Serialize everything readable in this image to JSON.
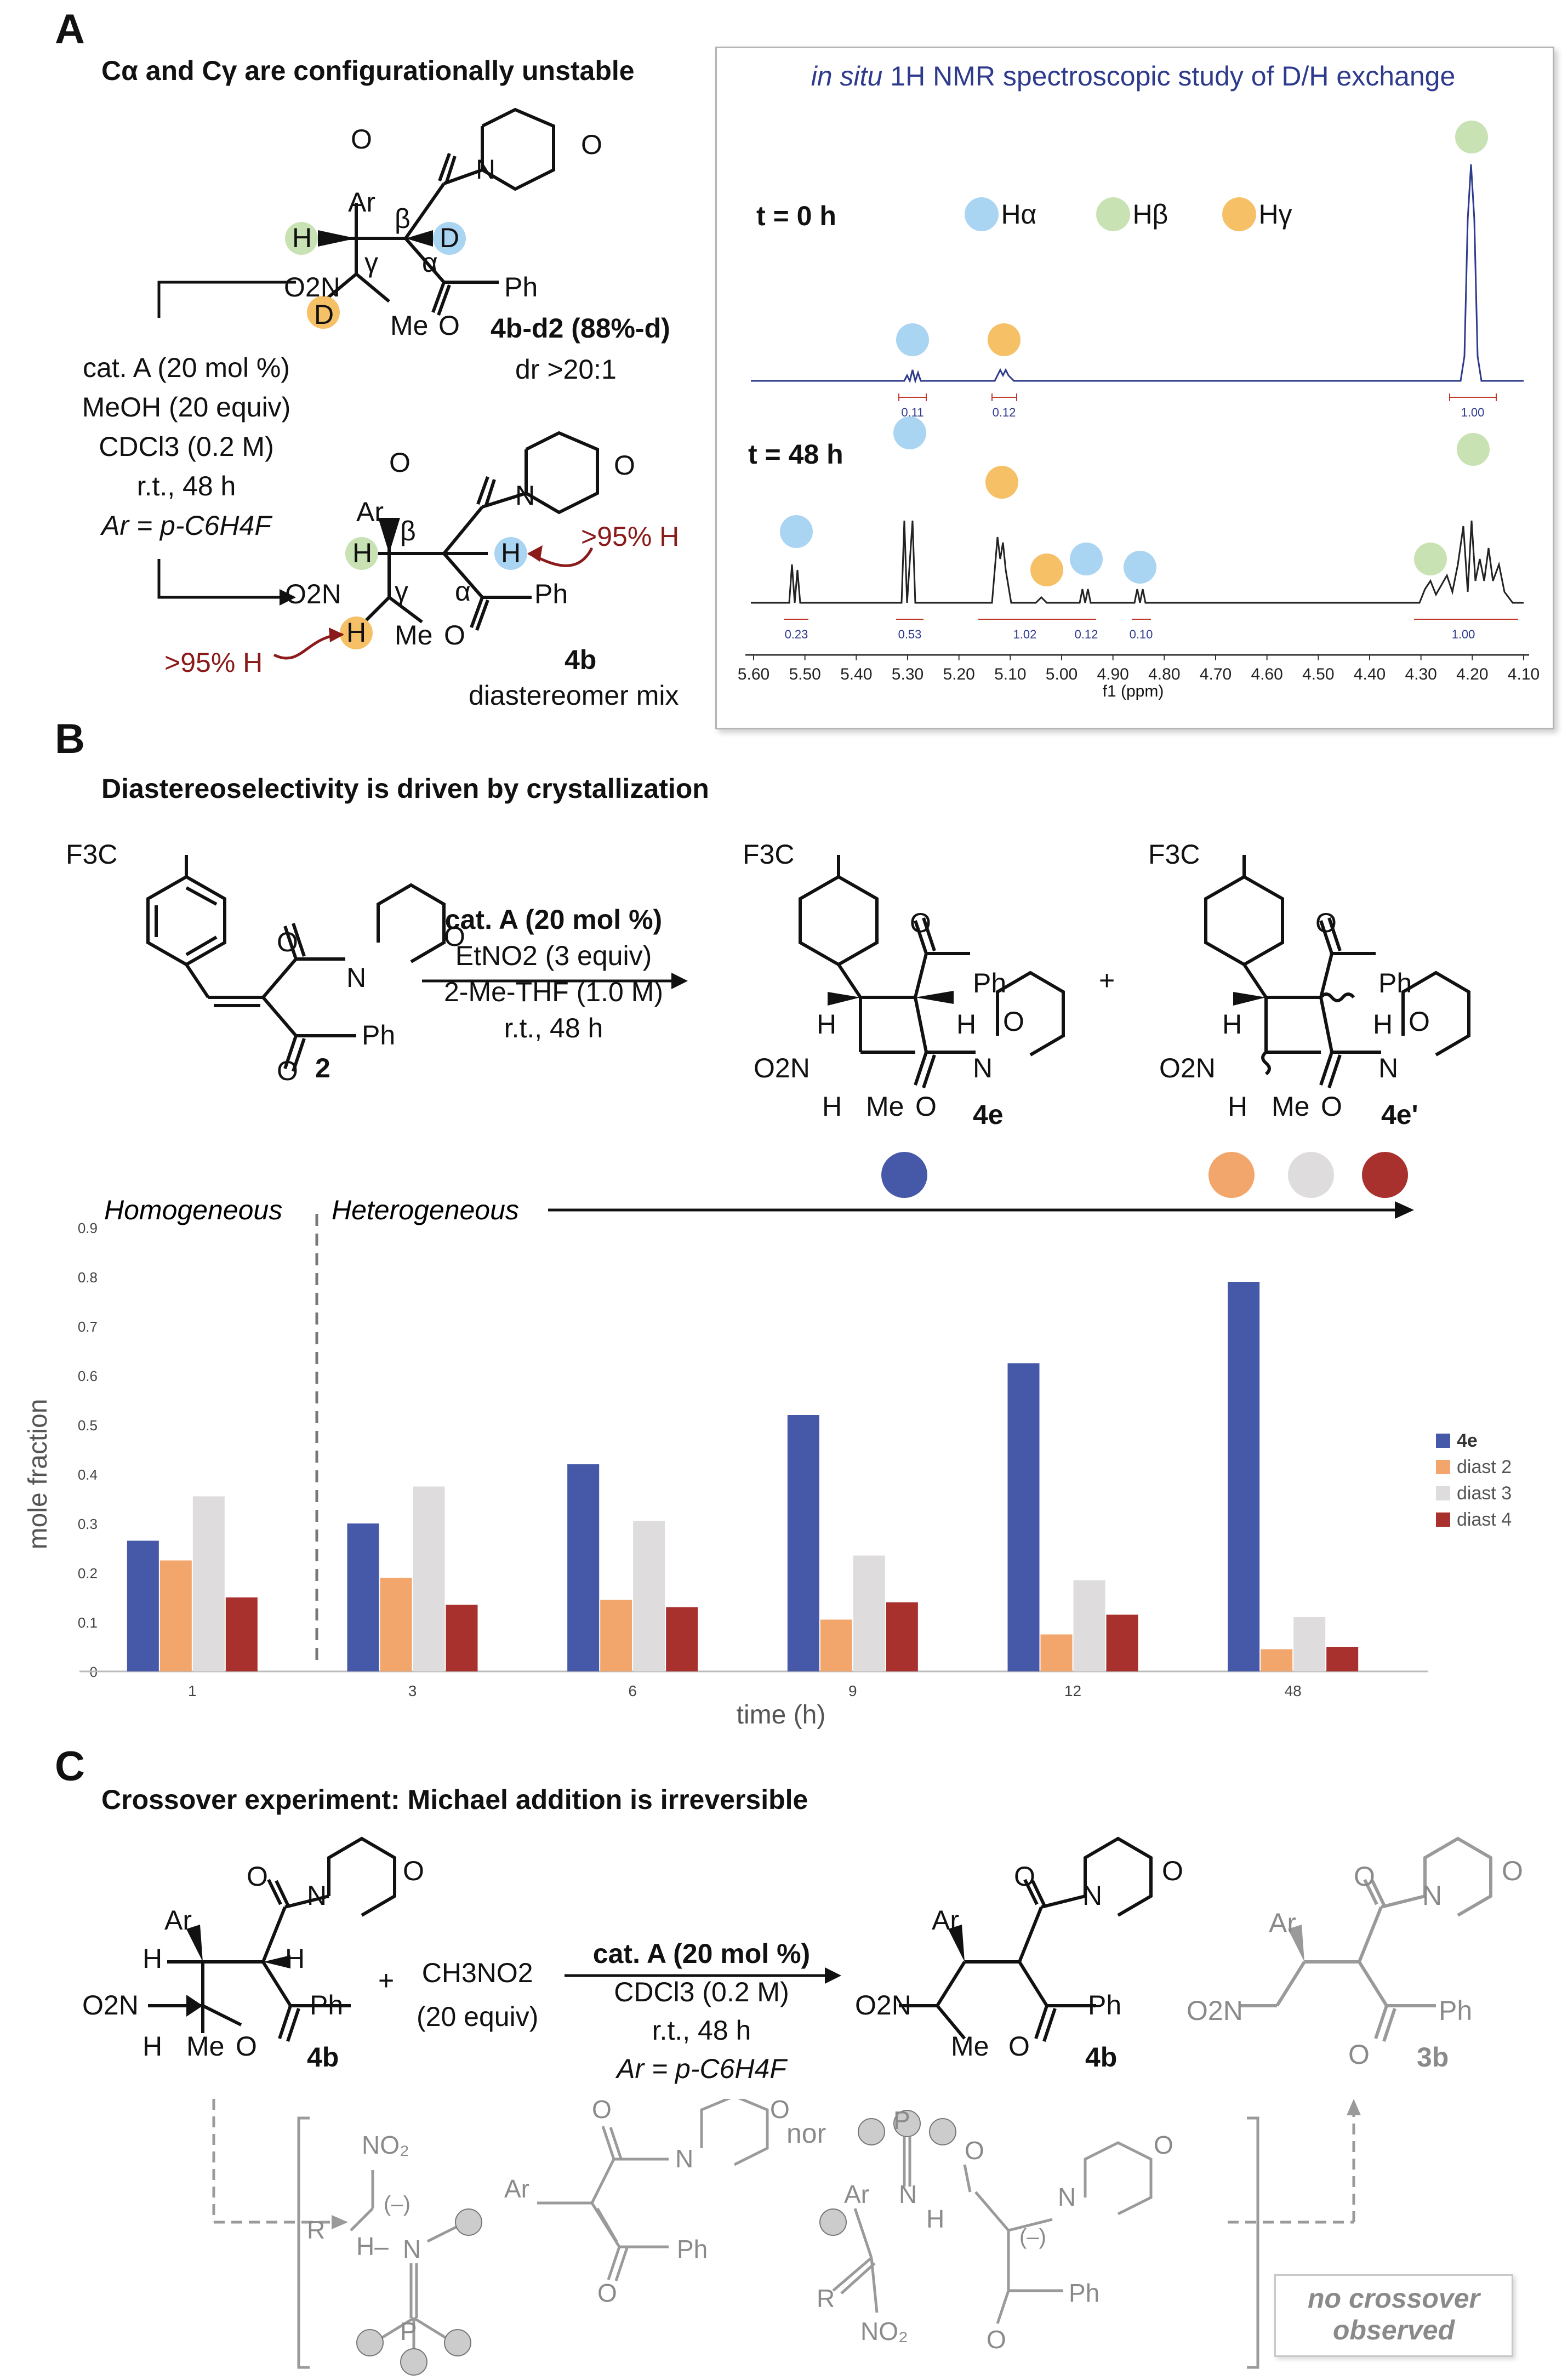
{
  "panel_a": {
    "label": "A",
    "heading": "Cα and Cγ are configurationally unstable",
    "conditions": [
      "cat. A (20 mol %)",
      "MeOH (20 equiv)",
      "CDCl3 (0.2 M)",
      "r.t., 48 h",
      "Ar = p-C6H4F"
    ],
    "product_top": {
      "name": "4b-d2 (88%-d)",
      "dr": "dr >20:1"
    },
    "product_bottom": {
      "name": "4b",
      "note": "diastereomer mix",
      "h_label_right": ">95% H",
      "h_label_left": ">95% H"
    },
    "atoms": {
      "ar": "Ar",
      "h": "H",
      "d": "D",
      "o": "O",
      "n": "N",
      "no2": "O2N",
      "me": "Me",
      "ph": "Ph",
      "beta": "β",
      "alpha": "α",
      "gamma": "γ"
    },
    "nmr": {
      "title_italic": "in situ",
      "title_rest": "1H NMR spectroscopic study of D/H exchange",
      "t0_label": "t = 0 h",
      "t48_label": "t = 48 h",
      "legend": [
        {
          "label": "Hα",
          "color": "#a9d4f2"
        },
        {
          "label": "Hβ",
          "color": "#c9e2b3"
        },
        {
          "label": "Hγ",
          "color": "#f6c067"
        }
      ],
      "xlabel": "f1 (ppm)",
      "ticks": [
        "5.60",
        "5.50",
        "5.40",
        "5.30",
        "5.20",
        "5.10",
        "5.00",
        "4.90",
        "4.80",
        "4.70",
        "4.60",
        "4.50",
        "4.40",
        "4.30",
        "4.20",
        "4.10"
      ],
      "t0_integrals": [
        "0.11",
        "0.12",
        "1.00"
      ],
      "t48_integrals": [
        "0.23",
        "0.53",
        "1.02",
        "0.12",
        "0.10",
        "1.00"
      ],
      "colors": {
        "t0": "#2e3a8c",
        "t48": "#222222"
      }
    }
  },
  "panel_b": {
    "label": "B",
    "heading": "Diastereoselectivity is driven by crystallization",
    "reactant": {
      "substituent": "F3C",
      "number": "2"
    },
    "conditions": [
      "cat. A (20 mol %)",
      "EtNO2 (3 equiv)",
      "2-Me-THF (1.0 M)",
      "r.t., 48 h"
    ],
    "product1": "4e",
    "product2": "4e'",
    "plus": "+",
    "homogeneous": "Homogeneous",
    "heterogeneous": "Heterogeneous"
  },
  "chart_data": {
    "type": "bar",
    "categories": [
      "1",
      "3",
      "6",
      "9",
      "12",
      "48"
    ],
    "series": [
      {
        "name": "4e",
        "color": "#4659a8",
        "values": [
          0.265,
          0.3,
          0.42,
          0.52,
          0.625,
          0.79
        ]
      },
      {
        "name": "diast 2",
        "color": "#f2a66b",
        "values": [
          0.225,
          0.19,
          0.145,
          0.105,
          0.075,
          0.045
        ]
      },
      {
        "name": "diast 3",
        "color": "#dedcdc",
        "values": [
          0.355,
          0.375,
          0.305,
          0.235,
          0.185,
          0.11
        ]
      },
      {
        "name": "diast 4",
        "color": "#a8302d",
        "values": [
          0.15,
          0.135,
          0.13,
          0.14,
          0.115,
          0.05
        ]
      }
    ],
    "xlabel": "time (h)",
    "ylabel": "mole fraction",
    "ylim": [
      0,
      0.9
    ],
    "yticks": [
      "0",
      "0.1",
      "0.2",
      "0.3",
      "0.4",
      "0.5",
      "0.6",
      "0.7",
      "0.8",
      "0.9"
    ],
    "legend_position": "right"
  },
  "panel_c": {
    "label": "C",
    "heading": "Crossover experiment: Michael addition is irreversible",
    "reactant": "4b",
    "plus": "+",
    "reagent": [
      "CH3NO2",
      "(20 equiv)"
    ],
    "conditions": [
      "cat. A (20 mol %)",
      "CDCl3 (0.2 M)",
      "r.t., 48 h",
      "Ar = p-C6H4F"
    ],
    "product": "4b",
    "crossover_product": "3b",
    "nor": "nor",
    "no_crossover": [
      "no crossover",
      "observed"
    ]
  }
}
